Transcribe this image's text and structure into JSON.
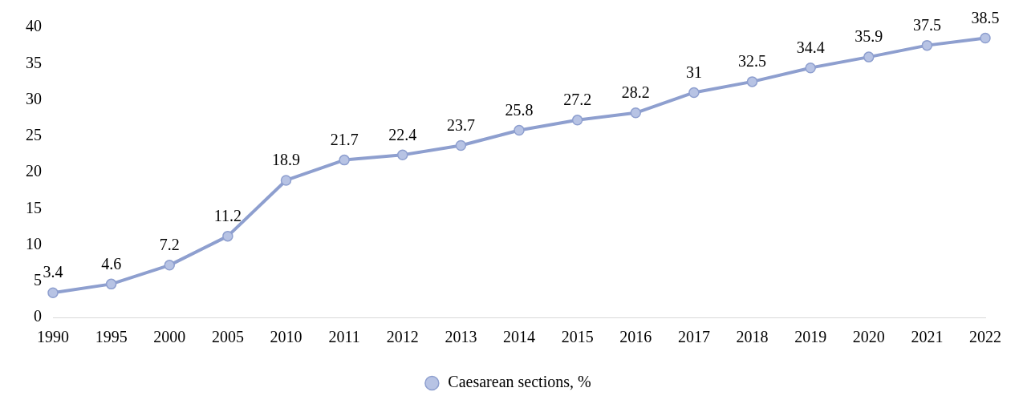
{
  "chart_data": {
    "type": "line",
    "categories": [
      "1990",
      "1995",
      "2000",
      "2005",
      "2010",
      "2011",
      "2012",
      "2013",
      "2014",
      "2015",
      "2016",
      "2017",
      "2018",
      "2019",
      "2020",
      "2021",
      "2022"
    ],
    "series": [
      {
        "name": "Caesarean sections, %",
        "color": "#8e9fcf",
        "values": [
          3.4,
          4.6,
          7.2,
          11.2,
          18.9,
          21.7,
          22.4,
          23.7,
          25.8,
          27.2,
          28.2,
          31,
          32.5,
          34.4,
          35.9,
          37.5,
          38.5
        ]
      }
    ],
    "ylim": [
      0,
      40
    ],
    "yticks": [
      0,
      5,
      10,
      15,
      20,
      25,
      30,
      35,
      40
    ],
    "grid": false,
    "legend": "bottom",
    "marker": "circle",
    "line_style": "solid",
    "data_labels": true
  }
}
